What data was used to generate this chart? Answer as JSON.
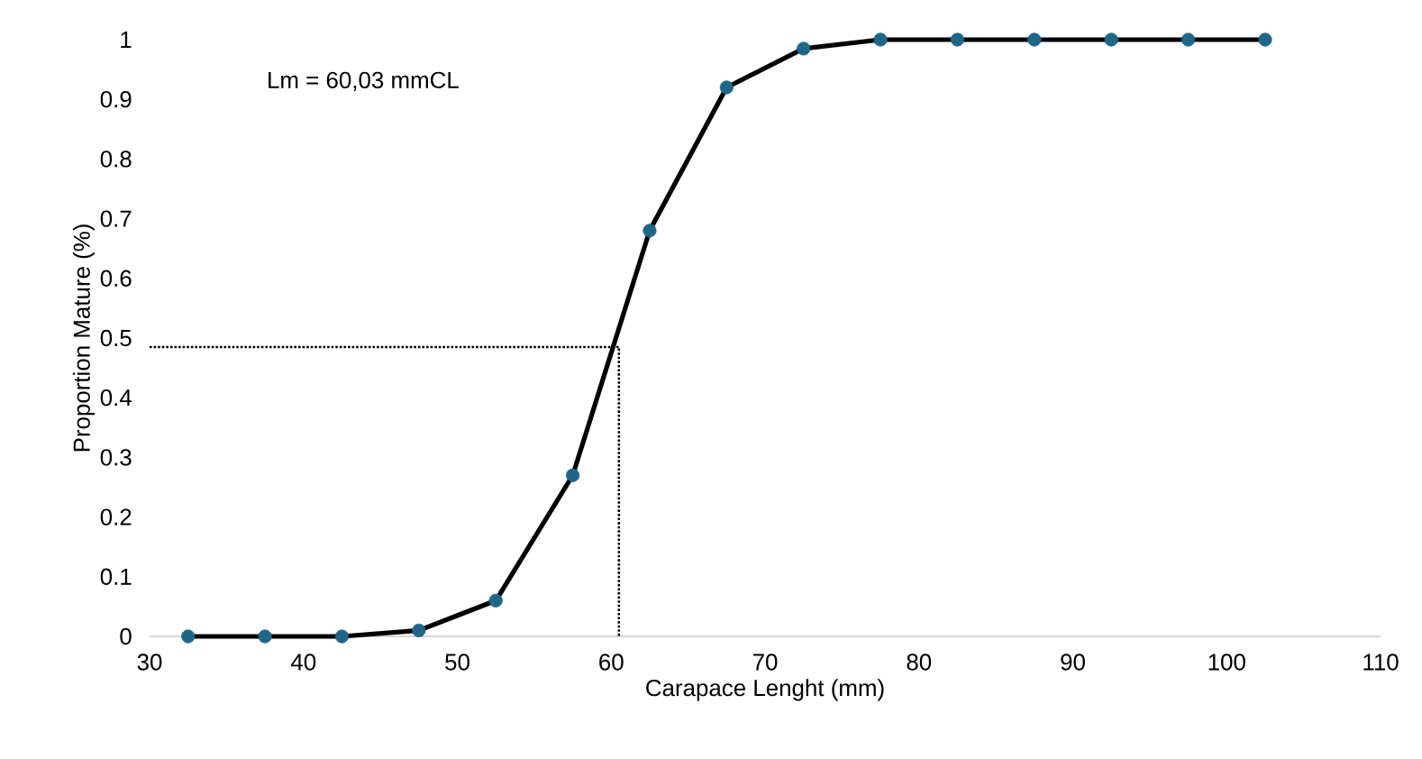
{
  "chart_data": {
    "type": "line",
    "xlabel": "Carapace Lenght (mm)",
    "ylabel": "Proportion Mature (%)",
    "annotations": [
      "Lm = 60,03 mmCL"
    ],
    "xlim": [
      30,
      110
    ],
    "xticks": [
      30,
      40,
      50,
      60,
      70,
      80,
      90,
      100,
      110
    ],
    "ylim": [
      0,
      1
    ],
    "yticks": [
      0,
      0.1,
      0.2,
      0.3,
      0.4,
      0.5,
      0.6,
      0.7,
      0.8,
      0.9,
      1
    ],
    "grid": false,
    "marker": "circle",
    "line_style": "solid",
    "series": [
      {
        "color": "#000000",
        "colors": [
          "#1f6688",
          "#1f6688",
          "#1f6688",
          "#1f6688",
          "#1f6688",
          "#1f6688",
          "#1f6688",
          "#1f6688",
          "#1f6688",
          "#1f6688",
          "#1f6688",
          "#1f6688",
          "#1f6688",
          "#1f6688",
          "#1f6688"
        ],
        "x": [
          32.5,
          37.5,
          42.5,
          47.5,
          52.5,
          57.5,
          62.5,
          67.5,
          72.5,
          77.5,
          82.5,
          87.5,
          92.5,
          97.5,
          102.5
        ],
        "values": [
          0,
          0,
          0,
          0.01,
          0.06,
          0.27,
          0.68,
          0.92,
          0.985,
          1,
          1,
          1,
          1,
          1,
          1
        ]
      },
      {
        "type": "line",
        "color": "#000000",
        "marker": "none",
        "line_style": "dotted",
        "x": [
          30,
          60.5,
          60.5
        ],
        "values": [
          0.485,
          0.485,
          0
        ]
      }
    ]
  }
}
